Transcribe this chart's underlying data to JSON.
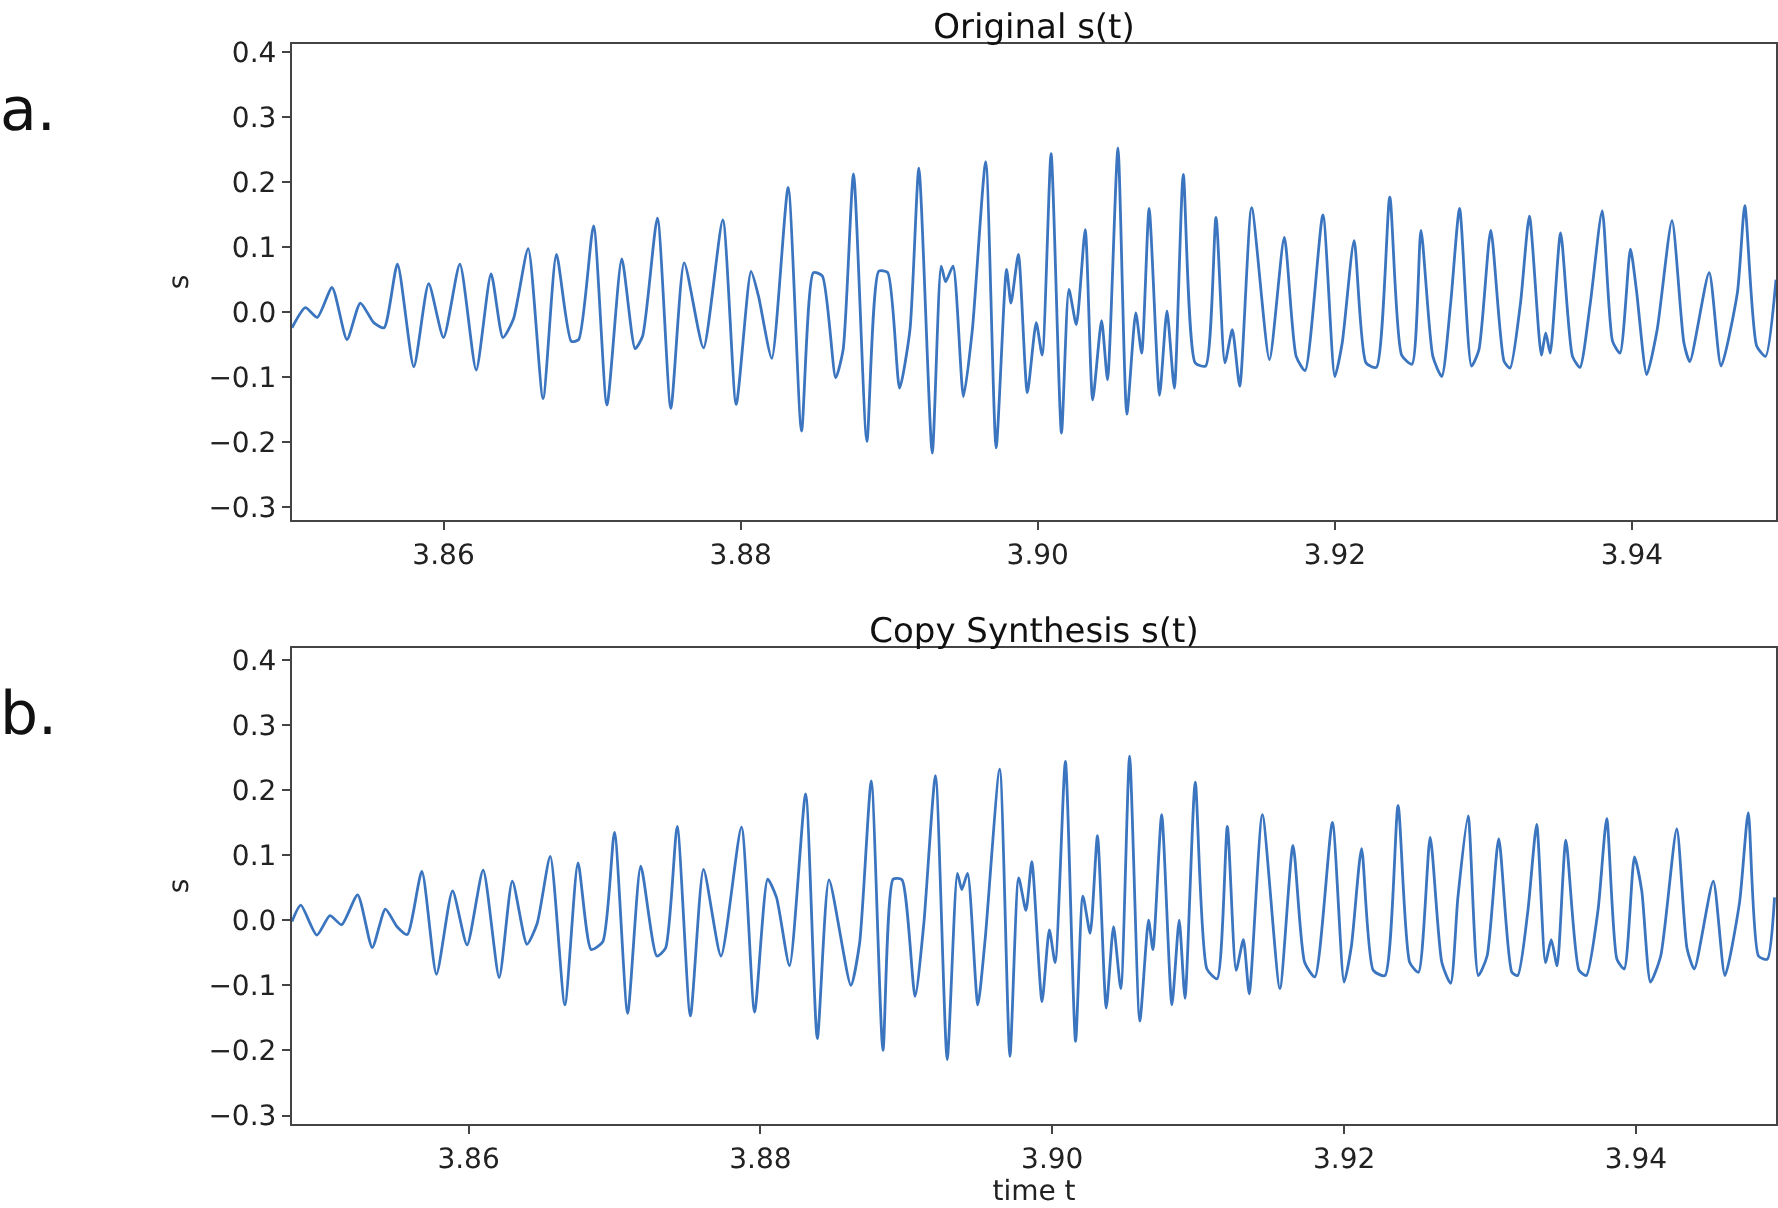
{
  "chart_data": [
    {
      "type": "line",
      "title": "Original s(t)",
      "ylabel": "s",
      "annotations": [
        "a."
      ],
      "color": "#3b75bf",
      "xlim": [
        3.8498,
        3.9497
      ],
      "ylim": [
        -0.32,
        0.413
      ],
      "xticks": [
        3.86,
        3.88,
        {
          "value": 3.9,
          "label": "3.90"
        },
        3.92,
        3.94
      ],
      "yticks": [
        {
          "value": -0.3,
          "label": "−0.3"
        },
        {
          "value": -0.2,
          "label": "−0.2"
        },
        {
          "value": -0.1,
          "label": "−0.1"
        },
        {
          "value": 0,
          "label": "0.0"
        },
        0.1,
        0.2,
        0.3,
        0.4
      ],
      "x": [
        3.8498,
        3.8507,
        3.8515,
        3.8525,
        3.8535,
        3.8544,
        3.8553,
        3.856,
        3.8569,
        3.858,
        3.859,
        3.86,
        3.8611,
        3.8622,
        3.8632,
        3.864,
        3.8647,
        3.8657,
        3.8667,
        3.8676,
        3.8686,
        3.8691,
        3.8701,
        3.871,
        3.872,
        3.8729,
        3.8734,
        3.8744,
        3.8753,
        3.8762,
        3.8775,
        3.8788,
        3.8797,
        3.8807,
        3.8812,
        3.8821,
        3.8832,
        3.8841,
        3.8849,
        3.8855,
        3.8864,
        3.8869,
        3.8876,
        3.8885,
        3.8893,
        3.8899,
        3.8907,
        3.8914,
        3.892,
        3.8929,
        3.8935,
        3.8938,
        3.8943,
        3.895,
        3.8956,
        3.8965,
        3.8972,
        3.8979,
        3.8982,
        3.8987,
        3.8993,
        3.8999,
        3.9003,
        3.9009,
        3.9016,
        3.9021,
        3.9026,
        3.9032,
        3.9037,
        3.9043,
        3.9047,
        3.9054,
        3.906,
        3.9066,
        3.907,
        3.9075,
        3.9082,
        3.9087,
        3.9092,
        3.9098,
        3.9106,
        3.9113,
        3.912,
        3.9126,
        3.9131,
        3.9136,
        3.9144,
        3.9156,
        3.9166,
        3.9174,
        3.918,
        3.9192,
        3.92,
        3.9205,
        3.9213,
        3.9221,
        3.9228,
        3.9237,
        3.9245,
        3.9252,
        3.9258,
        3.9266,
        3.9272,
        3.9278,
        3.9284,
        3.9292,
        3.9297,
        3.9305,
        3.9314,
        3.9318,
        3.9325,
        3.9331,
        3.9339,
        3.9342,
        3.9345,
        3.9352,
        3.936,
        3.9365,
        3.9372,
        3.938,
        3.9387,
        3.9392,
        3.9399,
        3.9403,
        3.941,
        3.9417,
        3.9427,
        3.9435,
        3.9439,
        3.9452,
        3.946,
        3.9471,
        3.9476,
        3.9484,
        3.949,
        3.9497
      ],
      "values": [
        -0.024,
        0.007,
        -0.008,
        0.038,
        -0.042,
        0.014,
        -0.016,
        -0.024,
        0.074,
        -0.084,
        0.044,
        -0.039,
        0.074,
        -0.089,
        0.059,
        -0.039,
        -0.011,
        0.098,
        -0.133,
        0.089,
        -0.045,
        -0.042,
        0.133,
        -0.143,
        0.082,
        -0.056,
        -0.037,
        0.145,
        -0.148,
        0.076,
        -0.055,
        0.142,
        -0.142,
        0.063,
        0.025,
        -0.071,
        0.192,
        -0.183,
        0.061,
        0.056,
        -0.101,
        -0.058,
        0.213,
        -0.199,
        0.063,
        0.061,
        -0.117,
        -0.027,
        0.222,
        -0.217,
        0.071,
        0.047,
        0.071,
        -0.13,
        -0.027,
        0.232,
        -0.209,
        0.066,
        0.014,
        0.089,
        -0.124,
        -0.016,
        -0.066,
        0.244,
        -0.186,
        0.035,
        -0.019,
        0.127,
        -0.135,
        -0.013,
        -0.104,
        0.253,
        -0.157,
        -0.001,
        -0.063,
        0.16,
        -0.128,
        0.002,
        -0.117,
        0.212,
        -0.078,
        -0.083,
        0.146,
        -0.078,
        -0.027,
        -0.114,
        0.161,
        -0.073,
        0.115,
        -0.068,
        -0.09,
        0.15,
        -0.099,
        -0.047,
        0.11,
        -0.078,
        -0.085,
        0.177,
        -0.066,
        -0.08,
        0.126,
        -0.068,
        -0.099,
        0.014,
        0.16,
        -0.083,
        -0.058,
        0.126,
        -0.076,
        -0.086,
        0.014,
        0.148,
        -0.066,
        -0.032,
        -0.063,
        0.122,
        -0.068,
        -0.085,
        0.014,
        0.156,
        -0.045,
        -0.063,
        0.097,
        0.035,
        -0.096,
        -0.027,
        0.141,
        -0.047,
        -0.076,
        0.061,
        -0.083,
        0.03,
        0.164,
        -0.052,
        -0.068,
        0.05
      ]
    },
    {
      "type": "line",
      "title": "Copy Synthesis s(t)",
      "xlabel": "time t",
      "ylabel": "s",
      "annotations": [
        "b."
      ],
      "color": "#3b75bf",
      "xlim": [
        3.8479,
        3.9496
      ],
      "ylim": [
        -0.313,
        0.418
      ],
      "xticks": [
        3.86,
        3.88,
        {
          "value": 3.9,
          "label": "3.90"
        },
        3.92,
        3.94
      ],
      "yticks": [
        {
          "value": -0.3,
          "label": "−0.3"
        },
        {
          "value": -0.2,
          "label": "−0.2"
        },
        {
          "value": -0.1,
          "label": "−0.1"
        },
        {
          "value": 0,
          "label": "0.0"
        },
        0.1,
        0.2,
        0.3,
        0.4
      ],
      "x": [
        3.8479,
        3.8485,
        3.8496,
        3.8505,
        3.8513,
        3.8524,
        3.8534,
        3.8543,
        3.8551,
        3.8558,
        3.8568,
        3.8578,
        3.8589,
        3.8599,
        3.861,
        3.8621,
        3.863,
        3.864,
        3.8647,
        3.8656,
        3.8666,
        3.8675,
        3.8684,
        3.8692,
        3.87,
        3.8709,
        3.8718,
        3.8729,
        3.8735,
        3.8743,
        3.8752,
        3.8761,
        3.8773,
        3.8787,
        3.8796,
        3.8805,
        3.8811,
        3.882,
        3.8831,
        3.8839,
        3.8847,
        3.8862,
        3.8868,
        3.8876,
        3.8884,
        3.8891,
        3.8897,
        3.8906,
        3.8912,
        3.892,
        3.8928,
        3.8935,
        3.8938,
        3.8942,
        3.8949,
        3.8954,
        3.8964,
        3.8971,
        3.8977,
        3.8982,
        3.8986,
        3.8993,
        3.8998,
        3.9002,
        3.9009,
        3.9016,
        3.9021,
        3.9026,
        3.9031,
        3.9037,
        3.9042,
        3.9047,
        3.9053,
        3.906,
        3.9066,
        3.9069,
        3.9075,
        3.9082,
        3.9087,
        3.9091,
        3.9098,
        3.9106,
        3.9113,
        3.912,
        3.9126,
        3.9131,
        3.9135,
        3.9144,
        3.9156,
        3.9165,
        3.9173,
        3.918,
        3.9192,
        3.92,
        3.9205,
        3.9212,
        3.922,
        3.9228,
        3.9237,
        3.9245,
        3.9251,
        3.9259,
        3.9267,
        3.9273,
        3.9278,
        3.9285,
        3.9292,
        3.9298,
        3.9306,
        3.9315,
        3.9319,
        3.9326,
        3.9332,
        3.9338,
        3.9342,
        3.9346,
        3.9352,
        3.9361,
        3.9366,
        3.9374,
        3.938,
        3.9387,
        3.9392,
        3.9399,
        3.9404,
        3.941,
        3.9417,
        3.9428,
        3.9435,
        3.944,
        3.9453,
        3.9461,
        3.9471,
        3.9477,
        3.9484,
        3.949,
        3.9495
      ],
      "values": [
        -0.002,
        0.023,
        -0.023,
        0.007,
        -0.007,
        0.039,
        -0.042,
        0.017,
        -0.01,
        -0.022,
        0.075,
        -0.083,
        0.045,
        -0.038,
        0.077,
        -0.088,
        0.06,
        -0.037,
        -0.005,
        0.098,
        -0.13,
        0.088,
        -0.045,
        -0.033,
        0.135,
        -0.143,
        0.083,
        -0.055,
        -0.043,
        0.144,
        -0.147,
        0.078,
        -0.055,
        0.143,
        -0.141,
        0.063,
        0.035,
        -0.07,
        0.194,
        -0.182,
        0.062,
        -0.1,
        -0.035,
        0.214,
        -0.2,
        0.063,
        0.062,
        -0.117,
        -0.005,
        0.222,
        -0.214,
        0.072,
        0.047,
        0.072,
        -0.13,
        -0.03,
        0.232,
        -0.209,
        0.065,
        0.015,
        0.09,
        -0.125,
        -0.015,
        -0.065,
        0.244,
        -0.186,
        0.037,
        -0.02,
        0.13,
        -0.135,
        -0.01,
        -0.105,
        0.252,
        -0.155,
        0,
        -0.045,
        0.162,
        -0.13,
        0,
        -0.12,
        0.212,
        -0.075,
        -0.09,
        0.144,
        -0.077,
        -0.03,
        -0.113,
        0.162,
        -0.105,
        0.115,
        -0.065,
        -0.087,
        0.15,
        -0.095,
        -0.04,
        0.11,
        -0.077,
        -0.085,
        0.176,
        -0.065,
        -0.08,
        0.127,
        -0.065,
        -0.097,
        0.035,
        0.16,
        -0.085,
        -0.055,
        0.125,
        -0.08,
        -0.085,
        0.015,
        0.147,
        -0.065,
        -0.03,
        -0.07,
        0.123,
        -0.077,
        -0.085,
        0.015,
        0.156,
        -0.06,
        -0.075,
        0.097,
        0.045,
        -0.095,
        -0.055,
        0.14,
        -0.043,
        -0.075,
        0.06,
        -0.085,
        0.027,
        0.165,
        -0.055,
        -0.06,
        0.035
      ]
    }
  ]
}
